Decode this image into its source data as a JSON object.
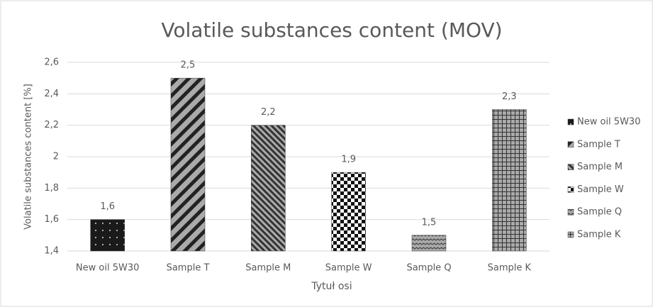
{
  "chart_data": {
    "type": "bar",
    "title": "Volatile substances content  (MOV)",
    "x_label": "Tytuł osi",
    "y_label": "Volatile substances content [%]",
    "categories": [
      "New oil 5W30",
      "Sample T",
      "Sample M",
      "Sample W",
      "Sample Q",
      "Sample K"
    ],
    "values": [
      1.6,
      2.5,
      2.2,
      1.9,
      1.5,
      2.3
    ],
    "value_labels": [
      "1,6",
      "2,5",
      "2,2",
      "1,9",
      "1,5",
      "2,3"
    ],
    "patterns": [
      "dots",
      "wide-diagonal",
      "narrow-diagonal",
      "checker",
      "wave",
      "grid"
    ],
    "ylim": [
      1.4,
      2.6
    ],
    "yticks": [
      {
        "value": 1.4,
        "label": "1,4"
      },
      {
        "value": 1.6,
        "label": "1,6"
      },
      {
        "value": 1.8,
        "label": "1,8"
      },
      2,
      {
        "value": 2.2,
        "label": "2,2"
      },
      {
        "value": 2.4,
        "label": "2,4"
      },
      {
        "value": 2.6,
        "label": "2,6"
      }
    ],
    "grid": true,
    "legend": "right"
  }
}
